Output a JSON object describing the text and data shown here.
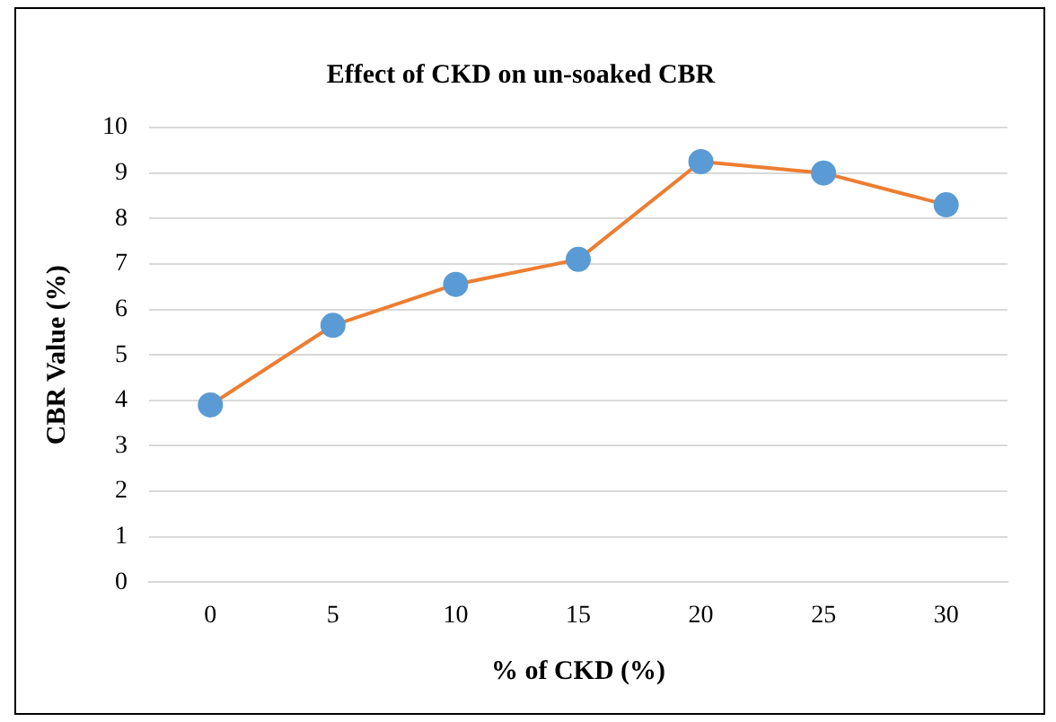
{
  "chart_data": {
    "type": "line",
    "title": "Effect of CKD on un-soaked CBR",
    "xlabel": "% of CKD (%)",
    "ylabel": "CBR Value (%)",
    "categories": [
      "0",
      "5",
      "10",
      "15",
      "20",
      "25",
      "30"
    ],
    "series": [
      {
        "color": "#ed7d31",
        "colors": [
          "#5b9bd5",
          "#5b9bd5",
          "#5b9bd5",
          "#5b9bd5",
          "#5b9bd5",
          "#5b9bd5",
          "#5b9bd5"
        ],
        "values": [
          3.9,
          5.65,
          6.55,
          7.1,
          9.25,
          9.0,
          8.3
        ]
      }
    ],
    "marker": "circle",
    "line_style": "solid",
    "ylim": [
      0,
      10
    ],
    "yticks": [
      0,
      1,
      2,
      3,
      4,
      5,
      6,
      7,
      8,
      9,
      10
    ],
    "grid": "y",
    "legend": false
  }
}
